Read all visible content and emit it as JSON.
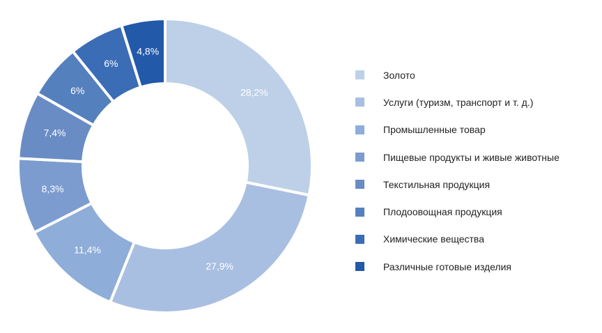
{
  "chart_data": {
    "type": "pie",
    "donut": true,
    "categories": [
      "Золото",
      "Услуги (туризм, транспорт и т. д.)",
      "Промышленные товар",
      "Пищевые продукты и живые животные",
      "Текстильная продукция",
      "Плодоовощная продукция",
      "Химические вещества",
      "Различные готовые изделия"
    ],
    "values": [
      28.2,
      27.9,
      11.4,
      8.3,
      7.4,
      6,
      6,
      4.8
    ],
    "data_labels": [
      "28,2%",
      "27,9%",
      "11,4%",
      "8,3%",
      "7,4%",
      "6%",
      "6%",
      "4,8%"
    ],
    "colors": [
      "#bdd0e8",
      "#a9bfe1",
      "#8eadd8",
      "#7c9ccf",
      "#6a8cc5",
      "#5580be",
      "#3b6cb6",
      "#2259a9"
    ],
    "legend_position": "right"
  }
}
